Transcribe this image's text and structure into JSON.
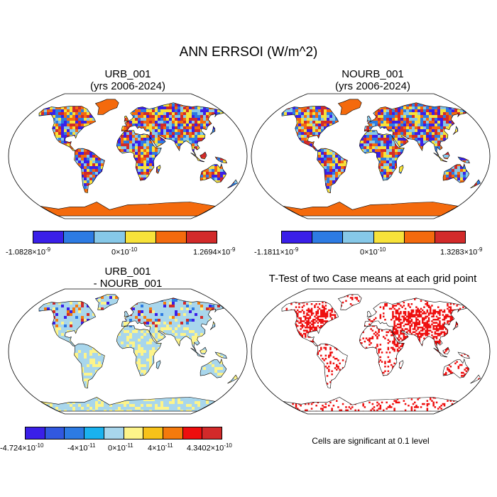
{
  "figure": {
    "title": "ANN ERRSOI (W/m^2)",
    "note": "Cells are significant at 0.1 level"
  },
  "panels": [
    {
      "id": "urb",
      "title_line1": "URB_001",
      "title_line2": "(yrs 2006-2024)"
    },
    {
      "id": "nourb",
      "title_line1": "NOURB_001",
      "title_line2": "(yrs 2006-2024)"
    },
    {
      "id": "diff",
      "title_line1": "URB_001",
      "title_line2": "- NOURB_001"
    },
    {
      "id": "ttest",
      "title_line1": "T-Test of two Case means at each grid point",
      "title_line2": ""
    }
  ],
  "colorbars": {
    "urb": {
      "colors": [
        "#3a1fe8",
        "#2d7be3",
        "#86c8e8",
        "#f7e23a",
        "#f46a0d",
        "#d22a2a"
      ],
      "labels": {
        "min": "-1.0828×10",
        "min_exp": "-9",
        "mid": "0×10",
        "mid_exp": "-10",
        "max": "1.2694×10",
        "max_exp": "-9"
      }
    },
    "nourb": {
      "colors": [
        "#3a1fe8",
        "#2d7be3",
        "#86c8e8",
        "#f7e23a",
        "#f46a0d",
        "#d22a2a"
      ],
      "labels": {
        "min": "-1.1811×10",
        "min_exp": "-9",
        "mid": "0×10",
        "mid_exp": "-10",
        "max": "1.3283×10",
        "max_exp": "-9"
      }
    },
    "diff": {
      "colors": [
        "#3a1fe8",
        "#3158e0",
        "#2d7be3",
        "#1ab2ef",
        "#a8d6ec",
        "#fdf48a",
        "#f7c21a",
        "#f47a0d",
        "#ee0e0e",
        "#d22a2a"
      ],
      "labels": {
        "t1": "-4.724×10",
        "t1_exp": "-10",
        "t2": "-4×10",
        "t2_exp": "-11",
        "t3": "0×10",
        "t3_exp": "-11",
        "t4": "4×10",
        "t4_exp": "-11",
        "t5": "4.3402×10",
        "t5_exp": "-10"
      }
    }
  },
  "map_palettes": {
    "field": [
      "#3a1fe8",
      "#2d7be3",
      "#86c8e8",
      "#f7e23a",
      "#f46a0d",
      "#d22a2a"
    ],
    "diff_base": "#a8d6ec",
    "diff_accent": [
      "#fdf48a",
      "#2d7be3",
      "#3a1fe8",
      "#f47a0d",
      "#d22a2a"
    ],
    "antarctica_field": "#f46a0d",
    "greenland_field": "#f46a0d",
    "signif": "#ee0e0e"
  }
}
